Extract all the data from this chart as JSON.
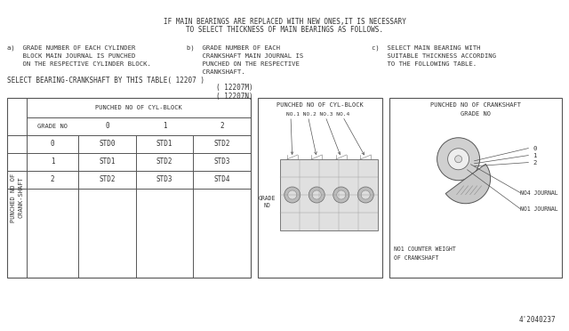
{
  "bg_color": "#ffffff",
  "line_color": "#555555",
  "text_color": "#333333",
  "title_line1": "IF MAIN BEARINGS ARE REPLACED WITH NEW ONES,IT IS NECESSARY",
  "title_line2": "TO SELECT THICKNESS OF MAIN BEARINGS AS FOLLOWS.",
  "note_a1": "a)  GRADE NUMBER OF EACH CYLINDER",
  "note_a2": "    BLOCK MAIN JOURNAL IS PUNCHED",
  "note_a3": "    ON THE RESPECTIVE CYLINDER BLOCK.",
  "note_b1": "b)  GRADE NUMBER OF EACH",
  "note_b2": "    CRANKSHAFT MAIN JOURNAL IS",
  "note_b3": "    PUNCHED ON THE RESPECTIVE",
  "note_b4": "    CRANKSHAFT.",
  "note_c1": "c)  SELECT MAIN BEARING WITH",
  "note_c2": "    SUITABLE THICKNESS ACCORDING",
  "note_c3": "    TO THE FOLLOWING TABLE.",
  "select_line1": "SELECT BEARING-CRANKSHAFT BY THIS TABLE( 12207 )",
  "select_line2": "( 12207M)",
  "select_line3": "( 12207N)",
  "table_header_col": "PUNCHED NO OF CYL-BLOCK",
  "table_row_header": "GRADE NO",
  "table_col_labels": [
    "0",
    "1",
    "2"
  ],
  "table_row_labels": [
    "0",
    "1",
    "2"
  ],
  "table_data": [
    [
      "STD0",
      "STD1",
      "STD2"
    ],
    [
      "STD1",
      "STD2",
      "STD3"
    ],
    [
      "STD2",
      "STD3",
      "STD4"
    ]
  ],
  "vert_label": "PUNCHED NO OF\nCRANK-SHAFT",
  "diagram2_title": "PUNCHED NO OF CYL-BLOCK",
  "diagram2_nos": "NO.1 NO.2 NO.3 NO.4",
  "diagram2_grade": "GRADE\nNO",
  "diagram3_title": "PUNCHED NO OF CRANKSHAFT",
  "diagram3_subtitle": "GRADE NO",
  "diagram3_labels": [
    "0",
    "1",
    "2"
  ],
  "diagram3_no4": "NO4 JOURNAL",
  "diagram3_no1": "NO1 JOURNAL",
  "diagram3_bottom1": "NO1 COUNTER WEIGHT",
  "diagram3_bottom2": "OF CRANKSHAFT",
  "footer": "4'2040237",
  "font_size": 5.5,
  "mono_font": "monospace"
}
